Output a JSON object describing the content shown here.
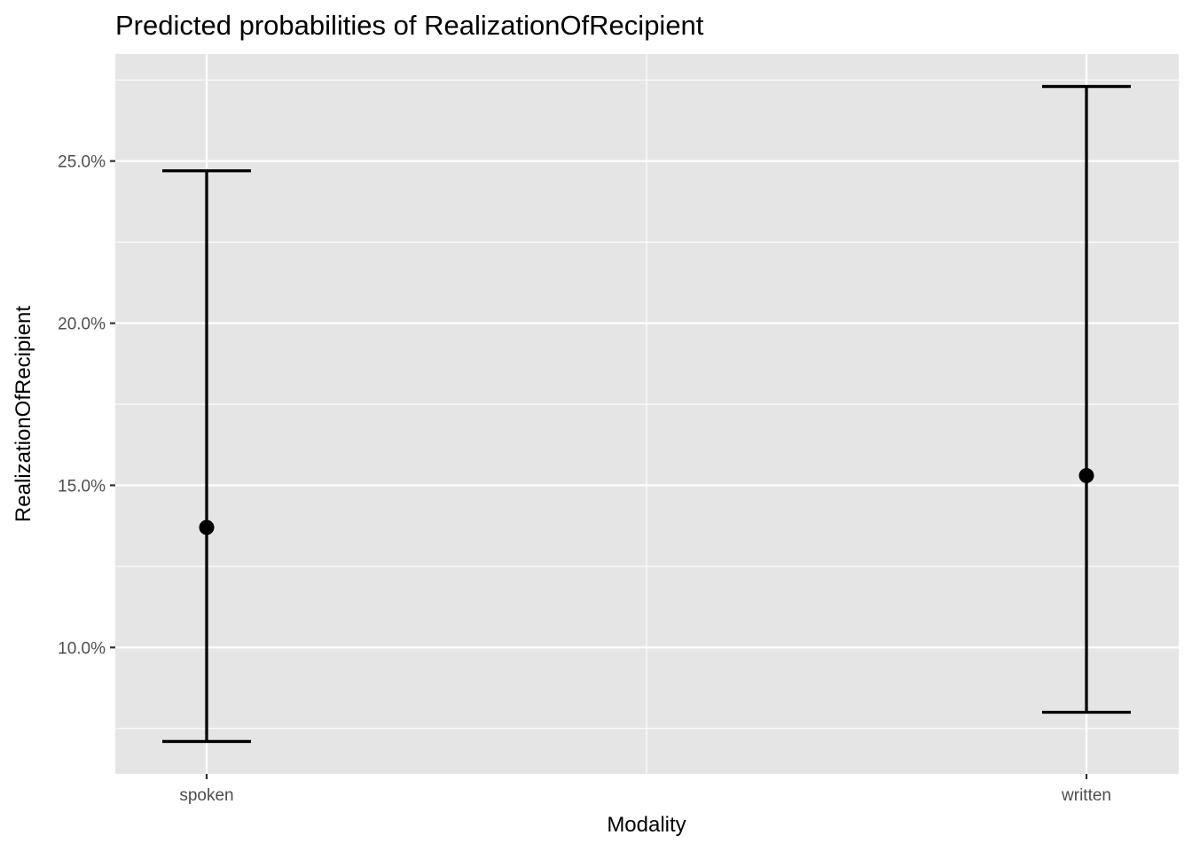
{
  "chart_data": {
    "type": "scatter",
    "title": "Predicted probabilities of RealizationOfRecipient",
    "xlabel": "Modality",
    "ylabel": "RealizationOfRecipient",
    "categories": [
      "spoken",
      "written"
    ],
    "series": [
      {
        "values": [
          0.137,
          0.153
        ],
        "lower": [
          0.071,
          0.08
        ],
        "upper": [
          0.247,
          0.273
        ]
      }
    ],
    "ylim": [
      0.061,
      0.283
    ],
    "yticks": [
      0.1,
      0.15,
      0.2,
      0.25
    ],
    "ytick_labels": [
      "10.0%",
      "15.0%",
      "20.0%",
      "25.0%"
    ],
    "grid": true,
    "colors": {
      "panel": "#e5e5e5",
      "grid": "#ffffff",
      "marks": "#000000"
    }
  }
}
